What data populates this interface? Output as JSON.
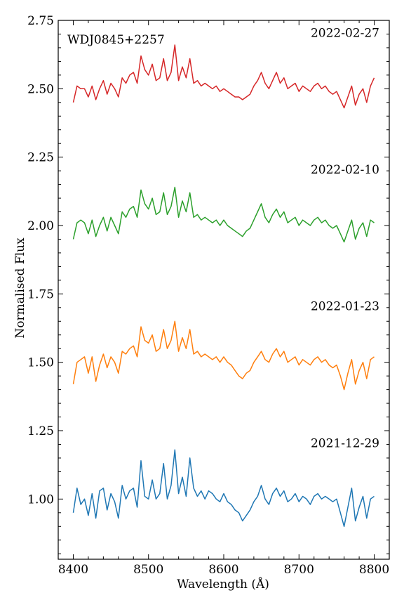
{
  "chart_data": {
    "type": "line",
    "title": "",
    "annotation": "WDJ0845+2257",
    "xlabel": "Wavelength (Å)",
    "ylabel": "Normalised Flux",
    "xlim": [
      8380,
      8820
    ],
    "ylim": [
      0.78,
      2.75
    ],
    "xticks": [
      8400,
      8500,
      8600,
      8700,
      8800
    ],
    "yticks": [
      1.0,
      1.25,
      1.5,
      1.75,
      2.0,
      2.25,
      2.5,
      2.75
    ],
    "ytick_labels": [
      "1.00",
      "1.25",
      "1.50",
      "1.75",
      "2.00",
      "2.25",
      "2.50",
      "2.75"
    ],
    "grid": false,
    "x": [
      8400,
      8405,
      8410,
      8415,
      8420,
      8425,
      8430,
      8435,
      8440,
      8445,
      8450,
      8455,
      8460,
      8465,
      8470,
      8475,
      8480,
      8485,
      8490,
      8495,
      8500,
      8505,
      8510,
      8515,
      8520,
      8525,
      8530,
      8535,
      8540,
      8545,
      8550,
      8555,
      8560,
      8565,
      8570,
      8575,
      8580,
      8585,
      8590,
      8595,
      8600,
      8605,
      8610,
      8615,
      8620,
      8625,
      8630,
      8635,
      8640,
      8645,
      8650,
      8655,
      8660,
      8665,
      8670,
      8675,
      8680,
      8685,
      8690,
      8695,
      8700,
      8705,
      8710,
      8715,
      8720,
      8725,
      8730,
      8735,
      8740,
      8745,
      8750,
      8755,
      8760,
      8765,
      8770,
      8775,
      8780,
      8785,
      8790,
      8795,
      8800
    ],
    "series": [
      {
        "name": "2021-12-29",
        "color": "#1f77b4",
        "values": [
          0.95,
          1.04,
          0.98,
          1.0,
          0.94,
          1.02,
          0.93,
          1.03,
          1.04,
          0.96,
          1.02,
          0.99,
          0.93,
          1.05,
          1.0,
          1.03,
          1.04,
          0.97,
          1.14,
          1.01,
          1.0,
          1.07,
          1.0,
          1.02,
          1.13,
          1.0,
          1.05,
          1.18,
          1.02,
          1.08,
          1.01,
          1.15,
          1.04,
          1.01,
          1.03,
          1.0,
          1.03,
          1.02,
          1.0,
          0.99,
          1.02,
          0.99,
          0.98,
          0.96,
          0.95,
          0.92,
          0.94,
          0.96,
          0.99,
          1.01,
          1.05,
          1.0,
          0.98,
          1.02,
          1.04,
          1.01,
          1.03,
          0.99,
          1.0,
          1.02,
          0.99,
          1.01,
          1.0,
          0.98,
          1.01,
          1.02,
          1.0,
          1.01,
          1.0,
          0.99,
          1.0,
          0.95,
          0.9,
          0.97,
          1.04,
          0.92,
          0.97,
          1.01,
          0.93,
          1.0,
          1.01
        ]
      },
      {
        "name": "2022-01-23",
        "color": "#ff7f0e",
        "values": [
          1.42,
          1.5,
          1.51,
          1.52,
          1.46,
          1.52,
          1.43,
          1.49,
          1.53,
          1.48,
          1.52,
          1.5,
          1.46,
          1.54,
          1.53,
          1.55,
          1.56,
          1.52,
          1.63,
          1.58,
          1.57,
          1.6,
          1.54,
          1.55,
          1.62,
          1.55,
          1.58,
          1.65,
          1.54,
          1.59,
          1.55,
          1.62,
          1.53,
          1.54,
          1.52,
          1.53,
          1.52,
          1.51,
          1.52,
          1.5,
          1.52,
          1.5,
          1.49,
          1.47,
          1.45,
          1.44,
          1.46,
          1.47,
          1.5,
          1.52,
          1.54,
          1.51,
          1.5,
          1.53,
          1.55,
          1.52,
          1.54,
          1.5,
          1.51,
          1.52,
          1.49,
          1.51,
          1.5,
          1.49,
          1.51,
          1.52,
          1.5,
          1.51,
          1.49,
          1.48,
          1.49,
          1.45,
          1.4,
          1.46,
          1.51,
          1.42,
          1.47,
          1.5,
          1.44,
          1.51,
          1.52
        ]
      },
      {
        "name": "2022-02-10",
        "color": "#2ca02c",
        "values": [
          1.95,
          2.01,
          2.02,
          2.01,
          1.97,
          2.02,
          1.96,
          2.0,
          2.03,
          1.98,
          2.03,
          2.0,
          1.97,
          2.05,
          2.03,
          2.06,
          2.07,
          2.03,
          2.13,
          2.08,
          2.06,
          2.1,
          2.04,
          2.05,
          2.12,
          2.04,
          2.07,
          2.14,
          2.03,
          2.09,
          2.05,
          2.12,
          2.03,
          2.04,
          2.02,
          2.03,
          2.02,
          2.01,
          2.02,
          2.0,
          2.02,
          2.0,
          1.99,
          1.98,
          1.97,
          1.96,
          1.98,
          1.99,
          2.02,
          2.05,
          2.08,
          2.03,
          2.01,
          2.04,
          2.06,
          2.03,
          2.05,
          2.01,
          2.02,
          2.03,
          2.0,
          2.02,
          2.01,
          2.0,
          2.02,
          2.03,
          2.01,
          2.02,
          2.0,
          1.99,
          2.0,
          1.97,
          1.94,
          1.98,
          2.02,
          1.95,
          1.99,
          2.01,
          1.96,
          2.02,
          2.01
        ]
      },
      {
        "name": "2022-02-27",
        "color": "#d62728",
        "values": [
          2.45,
          2.51,
          2.5,
          2.5,
          2.47,
          2.51,
          2.46,
          2.5,
          2.53,
          2.48,
          2.52,
          2.5,
          2.47,
          2.54,
          2.52,
          2.55,
          2.56,
          2.52,
          2.62,
          2.57,
          2.55,
          2.59,
          2.53,
          2.54,
          2.61,
          2.53,
          2.56,
          2.66,
          2.53,
          2.58,
          2.54,
          2.61,
          2.52,
          2.53,
          2.51,
          2.52,
          2.51,
          2.5,
          2.51,
          2.49,
          2.5,
          2.49,
          2.48,
          2.47,
          2.47,
          2.46,
          2.47,
          2.48,
          2.51,
          2.53,
          2.56,
          2.52,
          2.5,
          2.53,
          2.56,
          2.52,
          2.54,
          2.5,
          2.51,
          2.52,
          2.49,
          2.51,
          2.5,
          2.49,
          2.51,
          2.52,
          2.5,
          2.51,
          2.49,
          2.48,
          2.49,
          2.46,
          2.43,
          2.47,
          2.51,
          2.44,
          2.48,
          2.5,
          2.45,
          2.51,
          2.54
        ]
      }
    ]
  }
}
